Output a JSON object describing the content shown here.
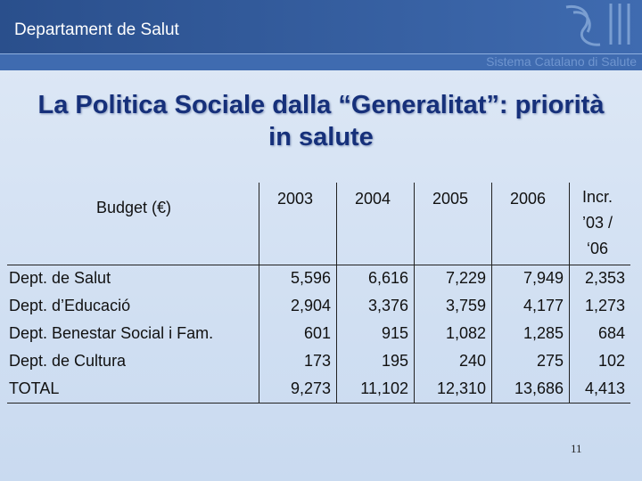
{
  "header": {
    "department": "Departament de Salut",
    "system": "Sistema Catalano di Salute"
  },
  "title": {
    "line1": "La Politica Sociale dalla “Generalitat”: priorità",
    "line2": "in salute"
  },
  "table": {
    "corner_label": "Budget (€)",
    "columns": [
      "2003",
      "2004",
      "2005",
      "2006"
    ],
    "incr_header": [
      "Incr.",
      "’03 /",
      "‘06"
    ],
    "rows": [
      {
        "label": "Dept. de Salut",
        "values": [
          "5,596",
          "6,616",
          "7,229",
          "7,949"
        ],
        "incr": "2,353"
      },
      {
        "label": "Dept. d’Educació",
        "values": [
          "2,904",
          "3,376",
          "3,759",
          "4,177"
        ],
        "incr": "1,273"
      },
      {
        "label": "Dept. Benestar Social i Fam.",
        "values": [
          "601",
          "915",
          "1,082",
          "1,285"
        ],
        "incr": "684"
      },
      {
        "label": "Dept. de Cultura",
        "values": [
          "173",
          "195",
          "240",
          "275"
        ],
        "incr": "102"
      },
      {
        "label": "TOTAL",
        "values": [
          "9,273",
          "11,102",
          "12,310",
          "13,686"
        ],
        "incr": "4,413"
      }
    ]
  },
  "page_number": "11"
}
